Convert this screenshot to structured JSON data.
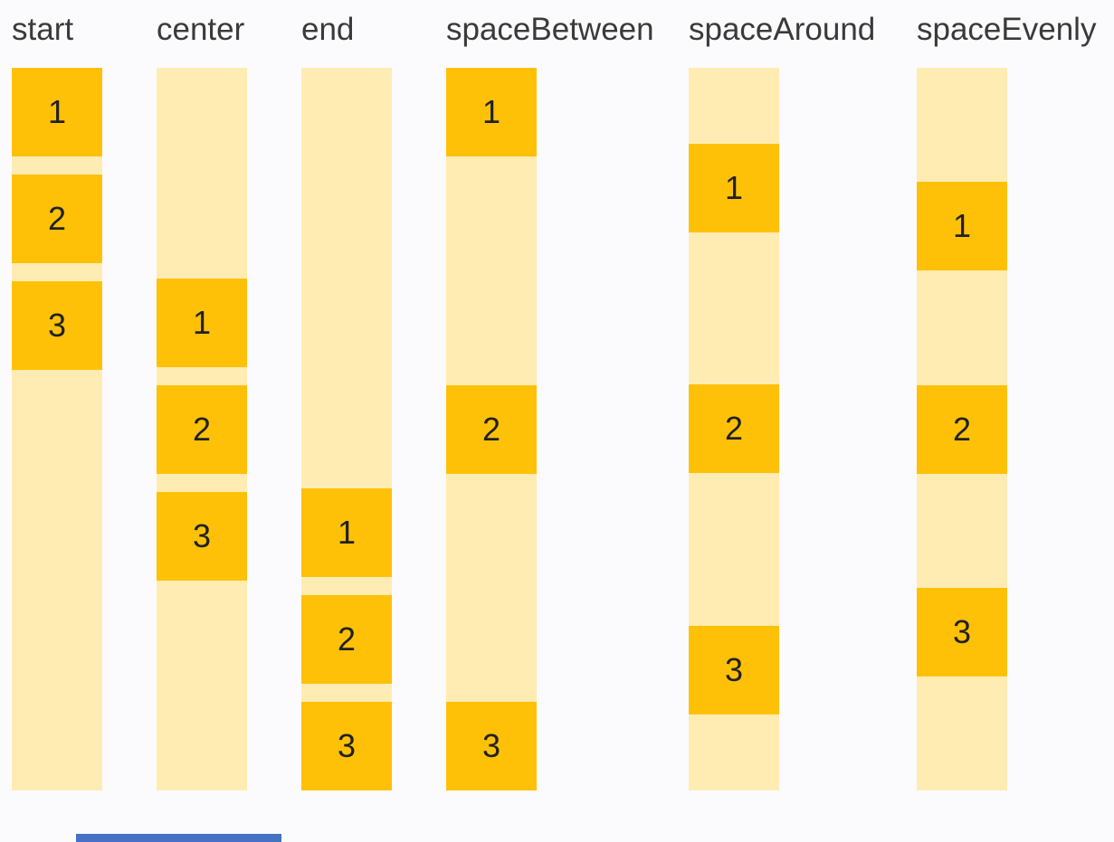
{
  "columns": [
    {
      "label": "start",
      "justify": "start",
      "items": [
        "1",
        "2",
        "3"
      ]
    },
    {
      "label": "center",
      "justify": "center",
      "items": [
        "1",
        "2",
        "3"
      ]
    },
    {
      "label": "end",
      "justify": "end",
      "items": [
        "1",
        "2",
        "3"
      ]
    },
    {
      "label": "spaceBetween",
      "justify": "spaceBetween",
      "items": [
        "1",
        "2",
        "3"
      ]
    },
    {
      "label": "spaceAround",
      "justify": "spaceAround",
      "items": [
        "1",
        "2",
        "3"
      ]
    },
    {
      "label": "spaceEvenly",
      "justify": "spaceEvenly",
      "items": [
        "1",
        "2",
        "3"
      ]
    }
  ],
  "colors": {
    "background": "#FBFBFE",
    "track": "#FFECB3",
    "box": "#FFC107",
    "label_text": "#3A3A3A",
    "digit_text": "#212121",
    "scrollbar_thumb": "#4472C4"
  },
  "scrollbar": {
    "thumb_present": true
  }
}
